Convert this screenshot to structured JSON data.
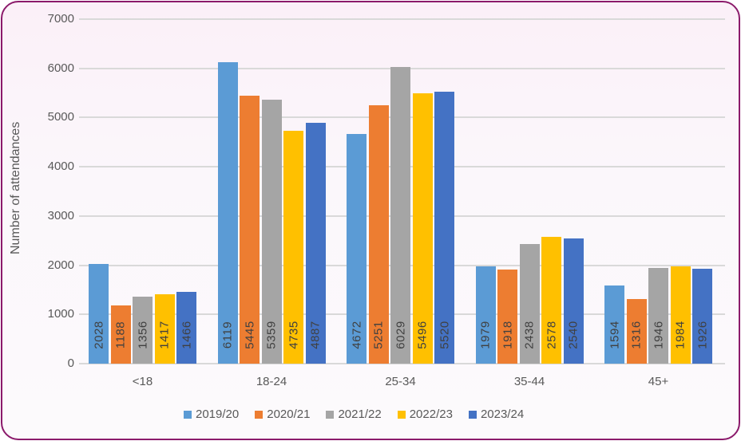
{
  "chart_data": {
    "type": "bar",
    "title": "",
    "xlabel": "",
    "ylabel": "Number of attendances",
    "ylim": [
      0,
      7000
    ],
    "yticks": [
      0,
      1000,
      2000,
      3000,
      4000,
      5000,
      6000,
      7000
    ],
    "grid": true,
    "legend_position": "bottom",
    "categories": [
      "<18",
      "18-24",
      "25-34",
      "35-44",
      "45+"
    ],
    "series": [
      {
        "name": "2019/20",
        "color": "#5b9bd5",
        "values": [
          2028,
          6119,
          4672,
          1979,
          1594
        ]
      },
      {
        "name": "2020/21",
        "color": "#ed7d31",
        "values": [
          1188,
          5445,
          5251,
          1918,
          1316
        ]
      },
      {
        "name": "2021/22",
        "color": "#a5a5a5",
        "values": [
          1356,
          5359,
          6029,
          2438,
          1946
        ]
      },
      {
        "name": "2022/23",
        "color": "#ffc000",
        "values": [
          1417,
          4735,
          5496,
          2578,
          1984
        ]
      },
      {
        "name": "2023/24",
        "color": "#4472c4",
        "values": [
          1466,
          4887,
          5520,
          2540,
          1926
        ]
      }
    ]
  }
}
